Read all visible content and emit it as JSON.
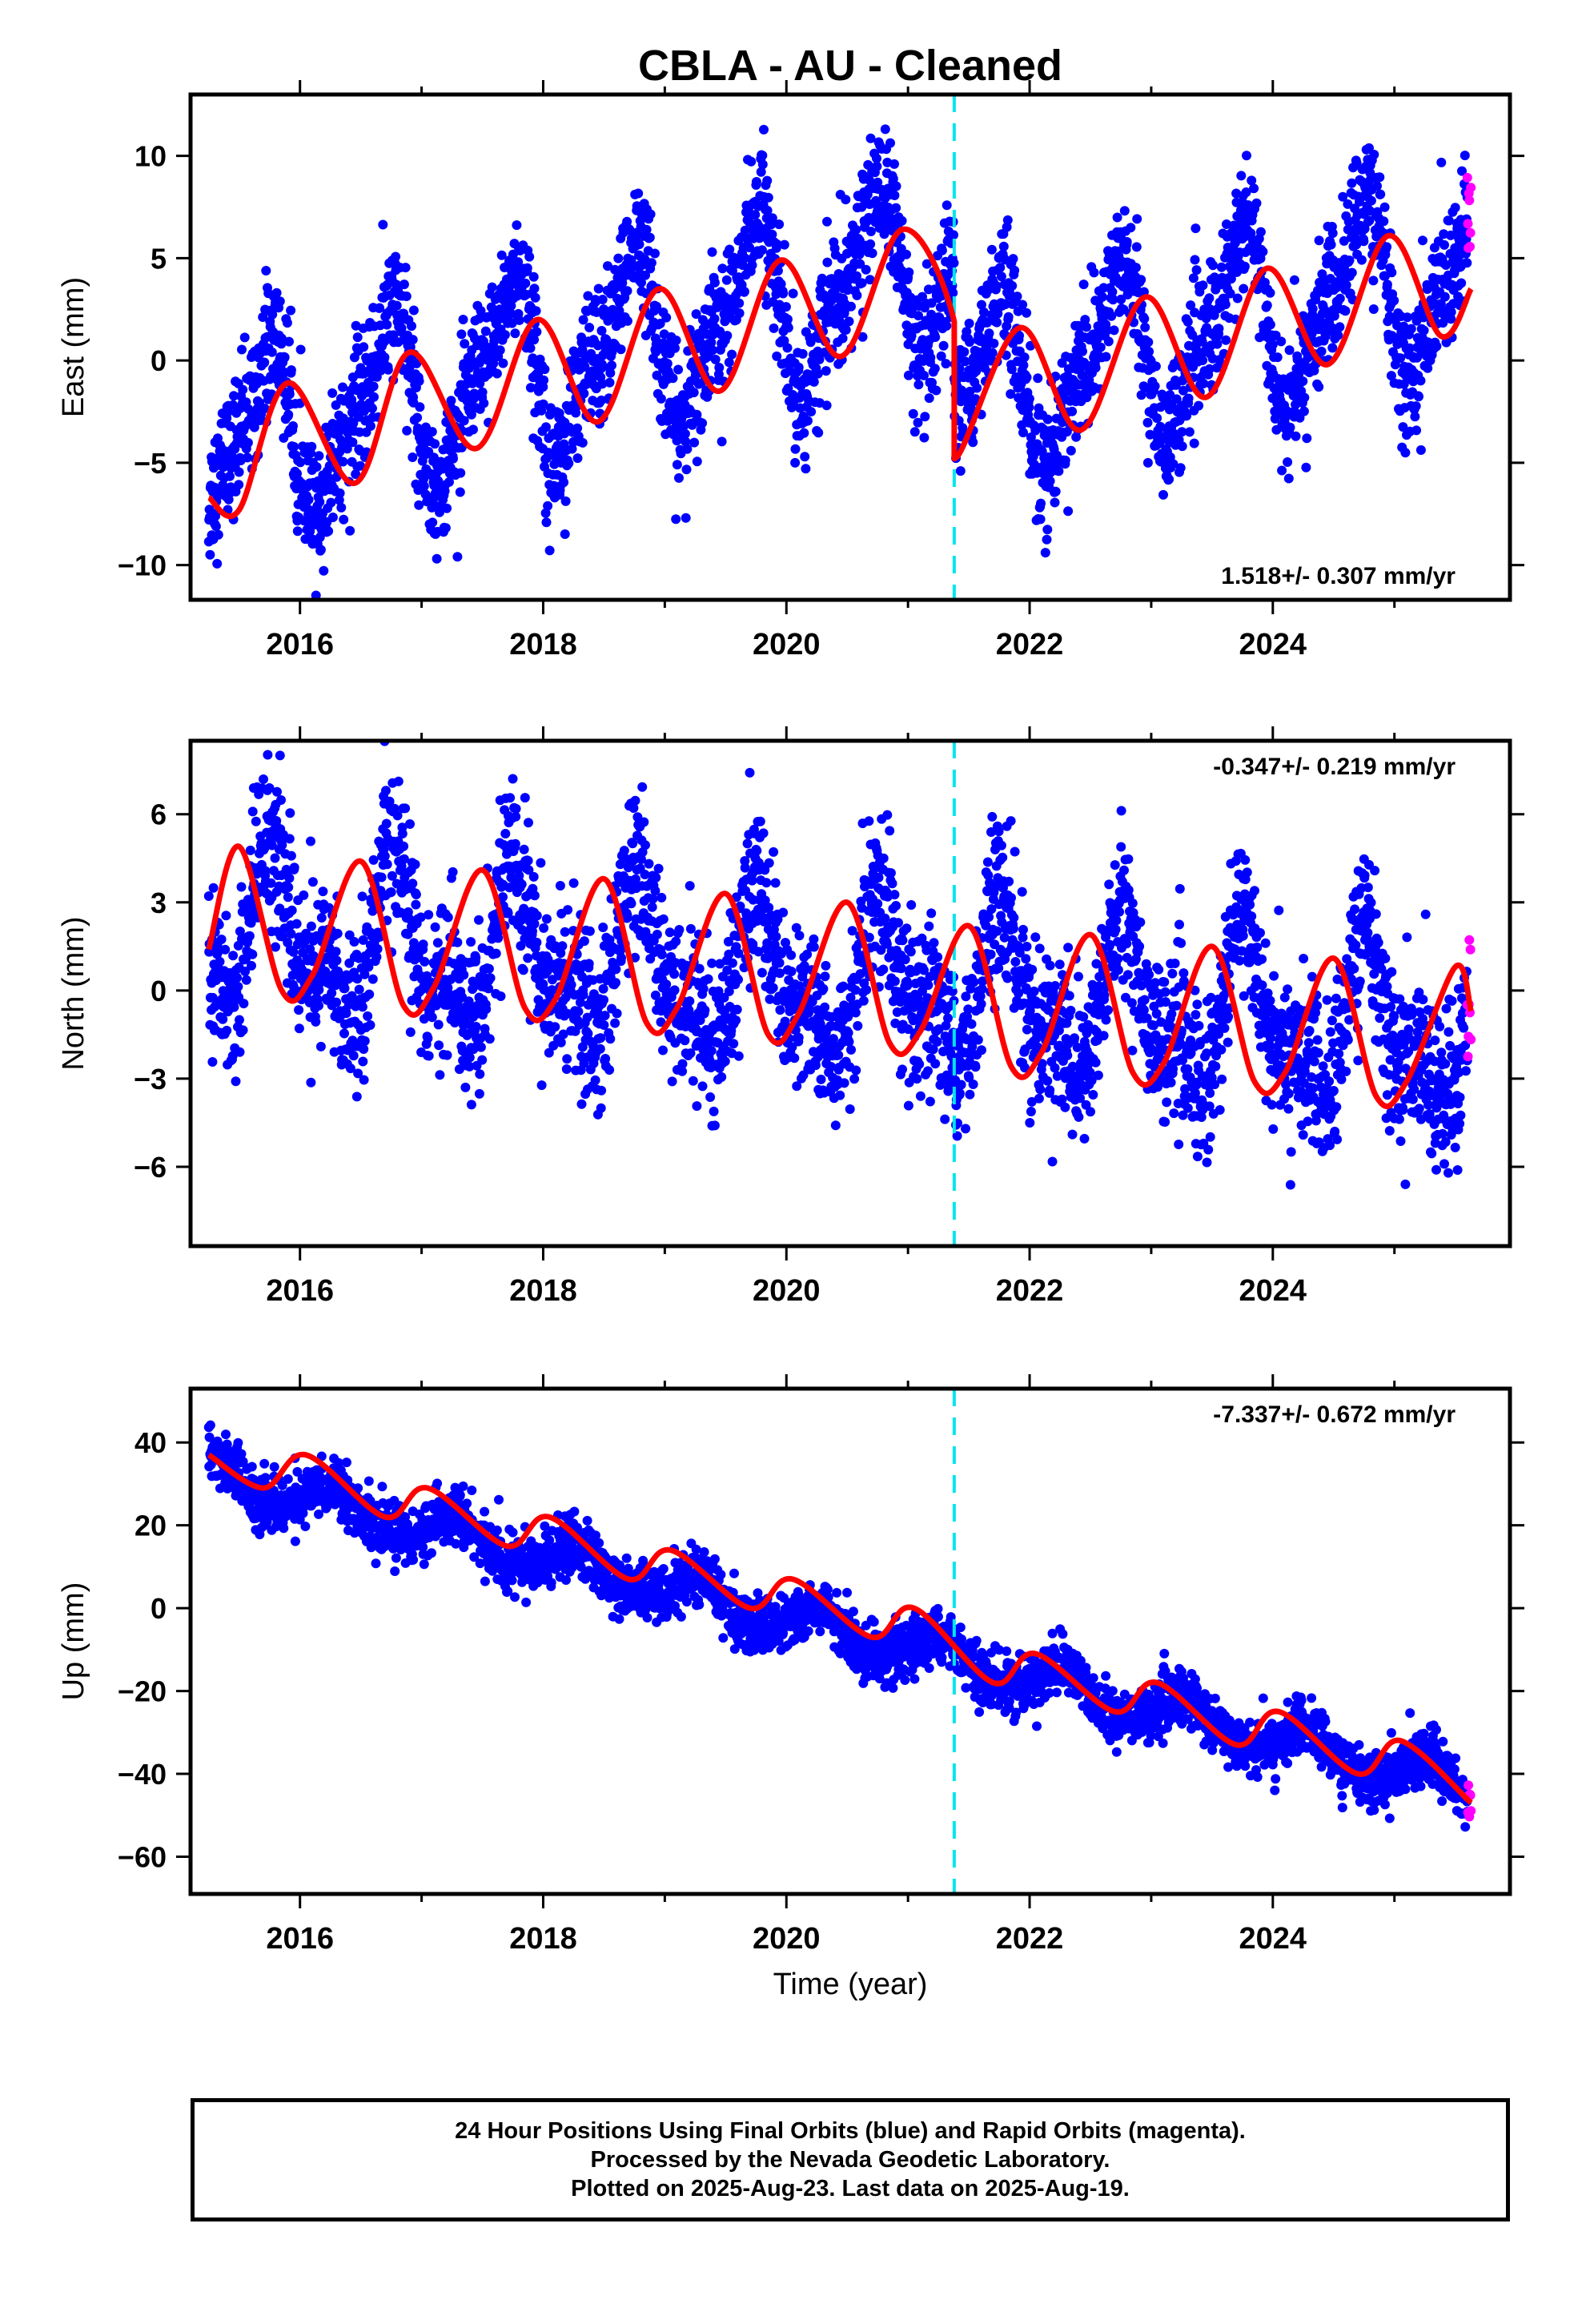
{
  "title": "CBLA  - AU - Cleaned",
  "colors": {
    "final_orbits": "#0000ff",
    "rapid_orbits": "#ff00ff",
    "model": "#ff0000",
    "break_line": "#00e5ee"
  },
  "chart_data": [
    {
      "type": "scatter",
      "panel": "east",
      "ylabel": "East (mm)",
      "xlabel": "",
      "xlim": [
        2015.1,
        2025.95
      ],
      "ylim": [
        -11.7,
        13.0
      ],
      "xticks": [
        2016,
        2018,
        2020,
        2022,
        2024
      ],
      "yticks": [
        -10,
        -5,
        0,
        5,
        10
      ],
      "rate_label": "1.518+/- 0.307 mm/yr",
      "rate_position": "bottom-right",
      "break_epoch": 2021.38,
      "data_start": 2015.25,
      "data_end": 2025.63,
      "rapid_start": 2025.6,
      "model": {
        "a": -4.4,
        "rate": 1.518,
        "t0": 2015.25,
        "s1": 1.2,
        "c1": -3.7,
        "s2": 1.1,
        "c2": 0.9,
        "scatter_sd": 1.6,
        "break_step": -6.8
      },
      "trend_points": [
        [
          2015.25,
          -6.7
        ],
        [
          2015.5,
          -7.3
        ],
        [
          2015.9,
          -1.1
        ],
        [
          2016.45,
          -6.0
        ],
        [
          2016.9,
          0.4
        ],
        [
          2017.45,
          -4.3
        ],
        [
          2017.95,
          2.0
        ],
        [
          2018.45,
          -3.0
        ],
        [
          2018.95,
          3.5
        ],
        [
          2019.45,
          -1.5
        ],
        [
          2019.95,
          4.9
        ],
        [
          2020.45,
          0.2
        ],
        [
          2020.95,
          6.4
        ],
        [
          2021.38,
          1.9
        ],
        [
          2021.38,
          -4.8
        ],
        [
          2021.92,
          1.6
        ],
        [
          2022.42,
          -3.4
        ],
        [
          2022.95,
          3.1
        ],
        [
          2023.45,
          -1.8
        ],
        [
          2023.95,
          4.5
        ],
        [
          2024.45,
          -0.2
        ],
        [
          2024.95,
          6.1
        ],
        [
          2025.38,
          1.2
        ],
        [
          2025.63,
          3.5
        ]
      ]
    },
    {
      "type": "scatter",
      "panel": "north",
      "ylabel": "North (mm)",
      "xlabel": "",
      "xlim": [
        2015.1,
        2025.95
      ],
      "ylim": [
        -8.7,
        8.5
      ],
      "xticks": [
        2016,
        2018,
        2020,
        2022,
        2024
      ],
      "yticks": [
        -6,
        -3,
        0,
        3,
        6
      ],
      "rate_label": "-0.347+/- 0.219 mm/yr",
      "rate_position": "top-right",
      "break_epoch": 2021.38,
      "data_start": 2015.25,
      "data_end": 2025.63,
      "rapid_start": 2025.6,
      "model": {
        "a": 2.0,
        "rate": -0.347,
        "t0": 2015.25,
        "s1": -0.5,
        "c1": -2.2,
        "s2": -0.2,
        "c2": 1.2,
        "scatter_sd": 1.35,
        "break_step": 0
      },
      "trend_points": [
        [
          2015.25,
          1.4
        ],
        [
          2015.5,
          4.9
        ],
        [
          2015.85,
          0.0
        ],
        [
          2016.1,
          0.5
        ],
        [
          2016.5,
          4.4
        ],
        [
          2016.85,
          -0.5
        ],
        [
          2017.1,
          0.1
        ],
        [
          2017.5,
          4.1
        ],
        [
          2017.85,
          -0.6
        ],
        [
          2018.1,
          -0.3
        ],
        [
          2018.5,
          3.8
        ],
        [
          2018.85,
          -1.1
        ],
        [
          2019.1,
          -0.6
        ],
        [
          2019.5,
          3.3
        ],
        [
          2019.85,
          -1.5
        ],
        [
          2020.1,
          -0.8
        ],
        [
          2020.5,
          3.0
        ],
        [
          2020.85,
          -1.8
        ],
        [
          2021.1,
          -1.4
        ],
        [
          2021.5,
          2.2
        ],
        [
          2021.85,
          -2.6
        ],
        [
          2022.1,
          -2.1
        ],
        [
          2022.5,
          1.9
        ],
        [
          2022.85,
          -2.8
        ],
        [
          2023.1,
          -2.5
        ],
        [
          2023.5,
          1.5
        ],
        [
          2023.85,
          -3.1
        ],
        [
          2024.1,
          -2.8
        ],
        [
          2024.5,
          1.1
        ],
        [
          2024.85,
          -3.6
        ],
        [
          2025.1,
          -3.1
        ],
        [
          2025.5,
          0.8
        ],
        [
          2025.63,
          -0.7
        ]
      ]
    },
    {
      "type": "scatter",
      "panel": "up",
      "ylabel": "Up (mm)",
      "xlabel": "Time (year)",
      "xlim": [
        2015.1,
        2025.95
      ],
      "ylim": [
        -69,
        53
      ],
      "xticks": [
        2016,
        2018,
        2020,
        2022,
        2024
      ],
      "yticks": [
        -60,
        -40,
        -20,
        0,
        20,
        40
      ],
      "rate_label": "-7.337+/- 0.672 mm/yr",
      "rate_position": "top-right",
      "break_epoch": 2021.38,
      "data_start": 2015.25,
      "data_end": 2025.63,
      "rapid_start": 2025.6,
      "model": {
        "a": 32.5,
        "rate": -7.337,
        "t0": 2015.25,
        "s1": 0.5,
        "c1": 4.0,
        "s2": 0.4,
        "c2": 0.8,
        "scatter_sd": 3.3,
        "break_step": 0
      },
      "trend_points": [
        [
          2015.25,
          37
        ],
        [
          2015.7,
          29
        ],
        [
          2016.05,
          37
        ],
        [
          2016.7,
          22
        ],
        [
          2017.05,
          29
        ],
        [
          2017.7,
          15
        ],
        [
          2018.05,
          22
        ],
        [
          2018.7,
          7
        ],
        [
          2019.05,
          14
        ],
        [
          2019.7,
          0
        ],
        [
          2020.05,
          7
        ],
        [
          2020.7,
          -7
        ],
        [
          2021.05,
          0
        ],
        [
          2021.7,
          -18
        ],
        [
          2022.05,
          -11
        ],
        [
          2022.7,
          -25
        ],
        [
          2023.05,
          -18
        ],
        [
          2023.7,
          -33
        ],
        [
          2024.05,
          -25
        ],
        [
          2024.7,
          -40
        ],
        [
          2025.05,
          -32
        ],
        [
          2025.63,
          -47
        ]
      ]
    }
  ],
  "footer": {
    "line1": "24 Hour Positions Using Final Orbits (blue) and Rapid Orbits (magenta).",
    "line2": "Processed by the Nevada Geodetic Laboratory.",
    "line3": "Plotted on 2025-Aug-23. Last data on 2025-Aug-19."
  }
}
